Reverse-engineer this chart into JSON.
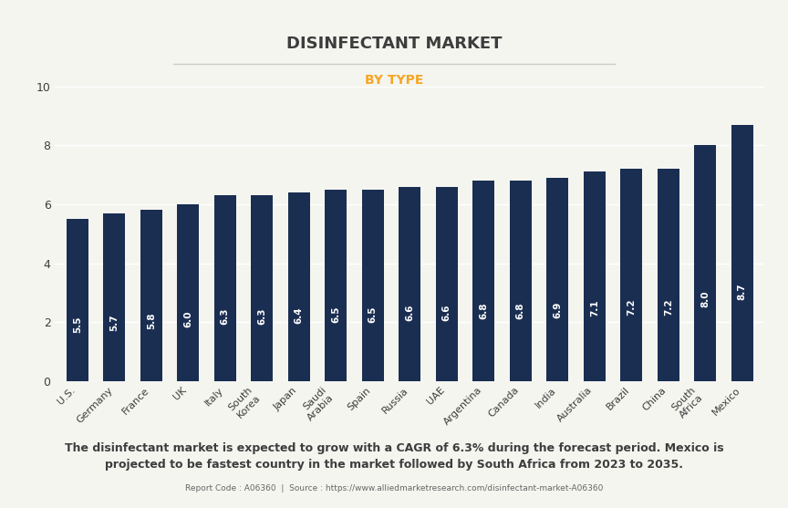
{
  "title": "DISINFECTANT MARKET",
  "subtitle": "BY TYPE",
  "categories": [
    "U.S.",
    "Germany",
    "France",
    "UK",
    "Italy",
    "South\nKorea",
    "Japan",
    "Saudi\nArabia",
    "Spain",
    "Russia",
    "UAE",
    "Argentina",
    "Canada",
    "India",
    "Australia",
    "Brazil",
    "China",
    "South\nAfrica",
    "Mexico"
  ],
  "values": [
    5.5,
    5.7,
    5.8,
    6.0,
    6.3,
    6.3,
    6.4,
    6.5,
    6.5,
    6.6,
    6.6,
    6.8,
    6.8,
    6.9,
    7.1,
    7.2,
    7.2,
    8.0,
    8.7
  ],
  "bar_color": "#1a2e52",
  "label_color": "#ffffff",
  "title_color": "#3d3d3d",
  "subtitle_color": "#f5a623",
  "background_color": "#f5f5f0",
  "ylim": [
    0,
    10
  ],
  "yticks": [
    0,
    2,
    4,
    6,
    8,
    10
  ],
  "footnote": "The disinfectant market is expected to grow with a CAGR of 6.3% during the forecast period. Mexico is\nprojected to be fastest country in the market followed by South Africa from 2023 to 2035.",
  "source_text": "Report Code : A06360  |  Source : https://www.alliedmarketresearch.com/disinfectant-market-A06360"
}
